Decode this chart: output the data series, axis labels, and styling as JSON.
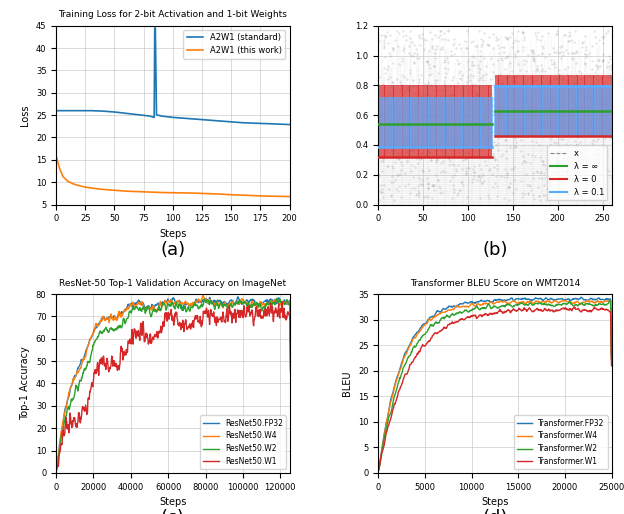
{
  "fig_width": 6.24,
  "fig_height": 5.14,
  "fig_dpi": 100,
  "plot_a": {
    "title": "Training Loss for 2-bit Activation and 1-bit Weights",
    "xlabel": "Steps",
    "ylabel": "Loss",
    "xlim": [
      0,
      200
    ],
    "ylim": [
      5,
      45
    ],
    "yticks": [
      5,
      10,
      15,
      20,
      25,
      30,
      35,
      40,
      45
    ],
    "xticks": [
      0,
      25,
      50,
      75,
      100,
      125,
      150,
      175,
      200
    ],
    "standard_color": "#1f77b4",
    "this_work_color": "#ff7f0e",
    "standard_label": "A2W1 (standard)",
    "this_work_label": "A2W1 (this work)"
  },
  "plot_b": {
    "xlim": [
      0,
      260
    ],
    "ylim": [
      0.0,
      1.2
    ],
    "yticks": [
      0.0,
      0.2,
      0.4,
      0.6,
      0.8,
      1.0,
      1.2
    ],
    "xticks": [
      0,
      50,
      100,
      150,
      200,
      250
    ],
    "noise_color": "#aaaaaa",
    "noise_label": "x",
    "lambda_inf_color": "#2ca02c",
    "lambda_0_color": "#d62728",
    "lambda_01_color": "#5aabff",
    "lambda_inf_label": "λ = ∞",
    "lambda_0_label": "λ = 0",
    "lambda_01_label": "λ = 0.1",
    "seg1_end": 127,
    "seg2_start": 130,
    "lambda_inf_v1": 0.54,
    "lambda_inf_v2": 0.63,
    "lambda_0_v1": 0.32,
    "lambda_0_v2": 0.46,
    "lambda_01_v1": 0.385,
    "lambda_01_v2": 0.795,
    "red_high1": 0.8,
    "red_high2": 0.87,
    "blue_high1": 0.72,
    "blue_low2": 0.46,
    "blue_high2": 0.8
  },
  "plot_c": {
    "title": "ResNet-50 Top-1 Validation Accuracy on ImageNet",
    "xlabel": "Steps",
    "ylabel": "Top-1 Accuracy",
    "xlim": [
      0,
      125000
    ],
    "ylim": [
      0,
      80
    ],
    "fp32_color": "#1f77b4",
    "w4_color": "#ff7f0e",
    "w2_color": "#2ca02c",
    "w1_color": "#d62728",
    "fp32_label": "ResNet50.FP32",
    "w4_label": "ResNet50.W4",
    "w2_label": "ResNet50.W2",
    "w1_label": "ResNet50.W1"
  },
  "plot_d": {
    "title": "Transformer BLEU Score on WMT2014",
    "xlabel": "Steps",
    "ylabel": "BLEU",
    "xlim": [
      0,
      25000
    ],
    "ylim": [
      0,
      35
    ],
    "xticks": [
      0,
      5000,
      10000,
      15000,
      20000,
      25000
    ],
    "fp32_color": "#1f77b4",
    "w4_color": "#ff7f0e",
    "w2_color": "#2ca02c",
    "w1_color": "#d62728",
    "fp32_label": "Transformer.FP32",
    "w4_label": "Transformer.W4",
    "w2_label": "Transformer.W2",
    "w1_label": "Transformer.W1"
  },
  "caption_fontsize": 13,
  "bg_color": "#ffffff",
  "grid_color": "#cccccc"
}
